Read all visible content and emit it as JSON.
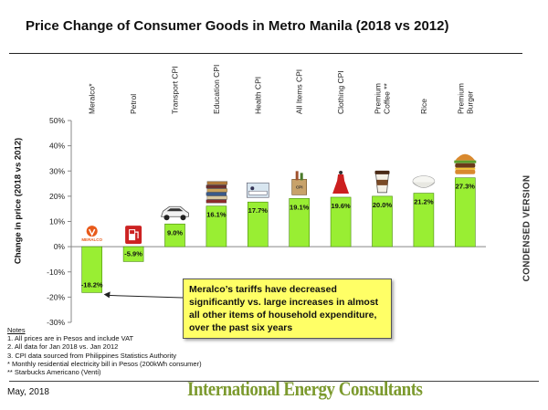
{
  "title": "Price Change of Consumer Goods in Metro Manila (2018 vs 2012)",
  "side_label": "CONDENSED VERSION",
  "callout": "Meralco’s tariffs have decreased significantly vs. large increases in almost all other items of household expenditure, over the past six years",
  "notes": {
    "title": "Notes",
    "items": [
      "1. All prices are in Pesos and include VAT",
      "2. All data for Jan 2018 vs. Jan 2012",
      "3. CPI data sourced from Philippines Statistics Authority",
      "*   Monthly residential electricity bill in Pesos (200kWh consumer)",
      "**  Starbucks Americano (Venti)"
    ]
  },
  "footer": {
    "date": "May, 2018",
    "company": "International Energy Consultants"
  },
  "colors": {
    "bar": "#99ee33",
    "bar_stroke": "#4a8a10",
    "axis": "#888888",
    "callout_bg": "#ffff66",
    "brand": "#7c9a2e"
  },
  "icons": [
    "meralco-logo-icon",
    "fuel-pump-icon",
    "car-icon",
    "books-icon",
    "hospital-bed-icon",
    "shopping-bag-icon",
    "dress-icon",
    "coffee-cup-icon",
    "rice-bowl-icon",
    "burger-icon"
  ],
  "chart_data": {
    "type": "bar",
    "categories": [
      "Meralco*",
      "Petrol",
      "Transport CPI",
      "Education CPI",
      "Health CPI",
      "All Items CPI",
      "Clothing CPI",
      "Premium Coffee **",
      "Rice",
      "Premium Burger"
    ],
    "values": [
      -18.2,
      -5.9,
      9.0,
      16.1,
      17.7,
      19.1,
      19.6,
      20.0,
      21.2,
      27.3
    ],
    "value_labels": [
      "-18.2%",
      "-5.9%",
      "9.0%",
      "16.1%",
      "17.7%",
      "19.1%",
      "19.6%",
      "20.0%",
      "21.2%",
      "27.3%"
    ],
    "ylabel": "Change in price (2018 vs 2012)",
    "ylim": [
      -30,
      50
    ],
    "yticks": [
      -30,
      -20,
      -10,
      0,
      10,
      20,
      30,
      40,
      50
    ],
    "ytick_labels": [
      "-30%",
      "-20%",
      "-10%",
      "0%",
      "10%",
      "20%",
      "30%",
      "40%",
      "50%"
    ],
    "grid": false,
    "legend": "none"
  }
}
